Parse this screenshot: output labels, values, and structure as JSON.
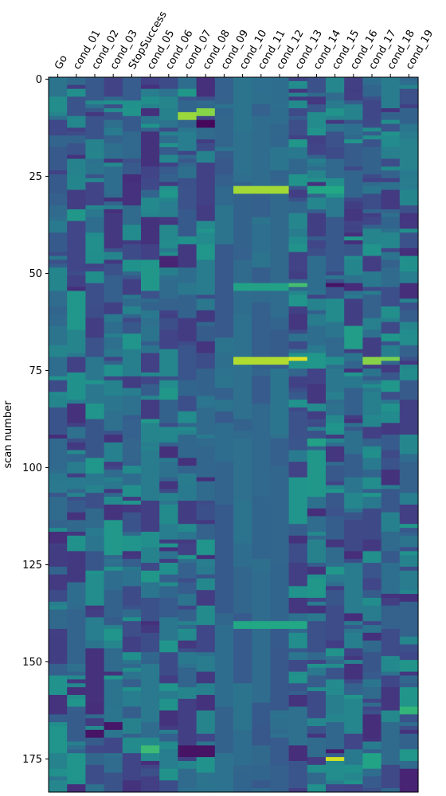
{
  "chart_data": {
    "type": "heatmap",
    "title": "",
    "xlabel": "",
    "ylabel": "scan number",
    "x_tick_position": "top",
    "x_tick_rotation_deg": 60,
    "columns": [
      "Go",
      "cond_01",
      "cond_02",
      "cond_03",
      "StopSuccess",
      "cond_05",
      "cond_06",
      "cond_07",
      "cond_08",
      "cond_09",
      "cond_10",
      "cond_11",
      "cond_12",
      "cond_13",
      "cond_14",
      "cond_15",
      "cond_16",
      "cond_17",
      "cond_18",
      "cond_19"
    ],
    "n_scans": 184,
    "yticks": [
      0,
      25,
      50,
      75,
      100,
      125,
      150,
      175
    ],
    "colormap": "viridis",
    "value_range": [
      0,
      1
    ],
    "baseline_value": 0.33,
    "highlights": [
      {
        "cols": [
          10,
          11,
          12
        ],
        "rows": [
          28,
          29
        ],
        "value": 0.86
      },
      {
        "cols": [
          10,
          11,
          12
        ],
        "rows": [
          72,
          73
        ],
        "value": 0.88
      },
      {
        "cols": [
          10,
          11,
          12
        ],
        "rows": [
          53,
          54
        ],
        "value": 0.57
      },
      {
        "cols": [
          10,
          11,
          12,
          13
        ],
        "rows": [
          140,
          141
        ],
        "value": 0.6
      },
      {
        "cols": [
          13
        ],
        "rows": [
          72
        ],
        "value": 0.95
      },
      {
        "cols": [
          13
        ],
        "rows": [
          53
        ],
        "value": 0.7
      },
      {
        "cols": [
          14,
          15
        ],
        "rows": [
          28,
          29
        ],
        "value": 0.6
      },
      {
        "cols": [
          7
        ],
        "rows": [
          9,
          10
        ],
        "value": 0.85
      },
      {
        "cols": [
          8
        ],
        "rows": [
          8,
          9
        ],
        "value": 0.82
      },
      {
        "cols": [
          8
        ],
        "rows": [
          11,
          12
        ],
        "value": 0.02
      },
      {
        "cols": [
          15
        ],
        "rows": [
          53
        ],
        "value": 0.05
      },
      {
        "cols": [
          15
        ],
        "rows": [
          175
        ],
        "value": 0.93
      },
      {
        "cols": [
          15
        ],
        "rows": [
          173
        ],
        "value": 0.08
      },
      {
        "cols": [
          17
        ],
        "rows": [
          72,
          73
        ],
        "value": 0.82
      },
      {
        "cols": [
          18
        ],
        "rows": [
          72
        ],
        "value": 0.8
      },
      {
        "cols": [
          2
        ],
        "rows": [
          168,
          169
        ],
        "value": 0.05
      },
      {
        "cols": [
          3
        ],
        "rows": [
          166,
          167
        ],
        "value": 0.06
      },
      {
        "cols": [
          19
        ],
        "rows": [
          178,
          179,
          180,
          181,
          182,
          183
        ],
        "value": 0.1
      },
      {
        "cols": [
          16
        ],
        "rows": [
          53,
          54
        ],
        "value": 0.12
      },
      {
        "cols": [
          16
        ],
        "rows": [
          58,
          59,
          60,
          61,
          62,
          63,
          64,
          65,
          66,
          67,
          68,
          69,
          70
        ],
        "value": 0.18
      },
      {
        "cols": [
          16
        ],
        "rows": [
          64,
          65,
          66,
          67,
          68,
          69
        ],
        "value": 0.55
      },
      {
        "cols": [
          6
        ],
        "rows": [
          46,
          47,
          48
        ],
        "value": 0.1
      },
      {
        "cols": [
          7,
          8
        ],
        "rows": [
          172,
          173,
          174
        ],
        "value": 0.05
      },
      {
        "cols": [
          5
        ],
        "rows": [
          172,
          173
        ],
        "value": 0.68
      },
      {
        "cols": [
          17
        ],
        "rows": [
          174,
          175,
          176,
          177
        ],
        "value": 0.58
      },
      {
        "cols": [
          19
        ],
        "rows": [
          162,
          163
        ],
        "value": 0.65
      },
      {
        "cols": [
          14
        ],
        "rows": [
          93,
          94
        ],
        "value": 0.57
      }
    ]
  }
}
